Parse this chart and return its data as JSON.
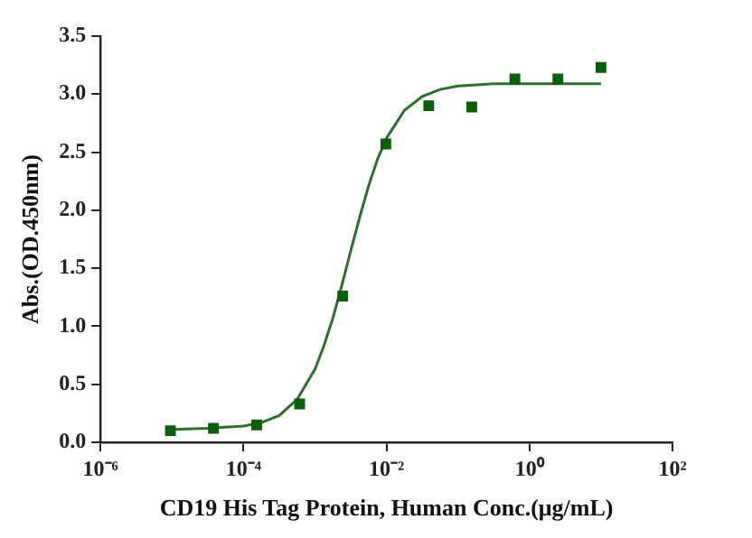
{
  "chart_data": {
    "type": "scatter",
    "xlabel": "CD19 His Tag Protein, Human Conc.(μg/mL)",
    "ylabel": "Abs.(OD.450nm)",
    "log": "x",
    "grid": false,
    "legend": false,
    "xlim": [
      1e-06,
      100
    ],
    "xticks": [
      {
        "value": 1e-06,
        "label": "10⁻⁶"
      },
      {
        "value": 0.0001,
        "label": "10⁻⁴"
      },
      {
        "value": 0.01,
        "label": "10⁻²"
      },
      {
        "value": 1,
        "label": "10⁰"
      },
      {
        "value": 100,
        "label": "10²"
      }
    ],
    "ylim": [
      0,
      3.5
    ],
    "yticks": [
      {
        "value": 0,
        "label": "0.0"
      },
      {
        "value": 0.5,
        "label": "0.5"
      },
      {
        "value": 1,
        "label": "1.0"
      },
      {
        "value": 1.5,
        "label": "1.5"
      },
      {
        "value": 2,
        "label": "2.0"
      },
      {
        "value": 2.5,
        "label": "2.5"
      },
      {
        "value": 3,
        "label": "3.0"
      },
      {
        "value": 3.5,
        "label": "3.5"
      }
    ],
    "series": [
      {
        "marker": "square",
        "color": "#0b5e0b",
        "x": [
          9.5e-06,
          3.8e-05,
          0.000153,
          0.00061,
          0.00244,
          0.0098,
          0.039,
          0.156,
          0.625,
          2.5,
          10
        ],
        "values": [
          0.1,
          0.12,
          0.15,
          0.33,
          1.26,
          2.57,
          2.9,
          2.89,
          3.13,
          3.13,
          3.23
        ]
      },
      {
        "type": "line",
        "marker": "none",
        "line_style": "solid",
        "color": "#2e6e2e",
        "x": [
          1e-05,
          3.16e-05,
          0.0001,
          0.000178,
          0.000316,
          0.000562,
          0.001,
          0.00133,
          0.00178,
          0.00237,
          0.00316,
          0.00422,
          0.00562,
          0.0075,
          0.01,
          0.0178,
          0.0316,
          0.0562,
          0.1,
          0.316,
          1,
          3.16,
          10
        ],
        "values": [
          0.11,
          0.12,
          0.14,
          0.17,
          0.23,
          0.37,
          0.63,
          0.83,
          1.07,
          1.35,
          1.65,
          1.94,
          2.21,
          2.44,
          2.62,
          2.86,
          2.98,
          3.04,
          3.07,
          3.09,
          3.09,
          3.09,
          3.09
        ]
      }
    ]
  }
}
